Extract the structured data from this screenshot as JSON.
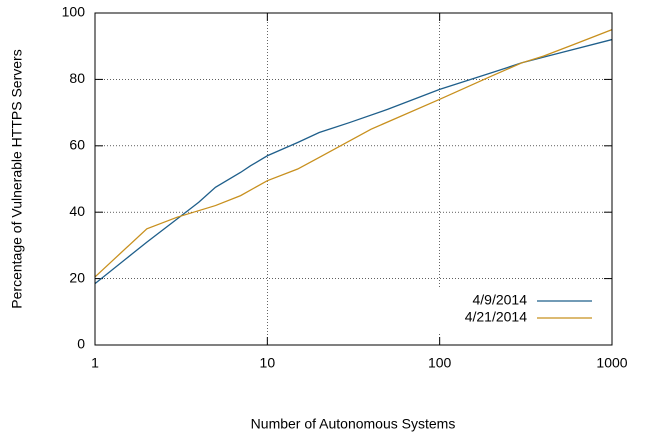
{
  "chart_data": {
    "type": "line",
    "xlabel": "Number of Autonomous Systems",
    "ylabel": "Percentage of Vulnerable HTTPS Servers",
    "xscale": "log",
    "xlim": [
      1,
      1000
    ],
    "xticks": [
      1,
      10,
      100,
      1000
    ],
    "ylim": [
      0,
      100
    ],
    "yticks": [
      0,
      20,
      40,
      60,
      80,
      100
    ],
    "grid": true,
    "legend": "lower right",
    "series": [
      {
        "name": "4/9/2014",
        "color": "#1f5f8b",
        "x": [
          1,
          2,
          3,
          4,
          5,
          7,
          8,
          10,
          15,
          20,
          30,
          50,
          100,
          200,
          300,
          500,
          1000
        ],
        "values": [
          18.5,
          31,
          38,
          43,
          47.5,
          52,
          54,
          57,
          61,
          64,
          67,
          71,
          77,
          82,
          85,
          88,
          92
        ]
      },
      {
        "name": "4/21/2014",
        "color": "#c8901e",
        "x": [
          1,
          1.3,
          2,
          3,
          5,
          7,
          10,
          15,
          20,
          40,
          100,
          200,
          300,
          400,
          600,
          1000
        ],
        "values": [
          20.5,
          26,
          35,
          38.5,
          42,
          45,
          49.5,
          53,
          56.5,
          65,
          74,
          81,
          85,
          87,
          90.5,
          95
        ]
      }
    ]
  }
}
